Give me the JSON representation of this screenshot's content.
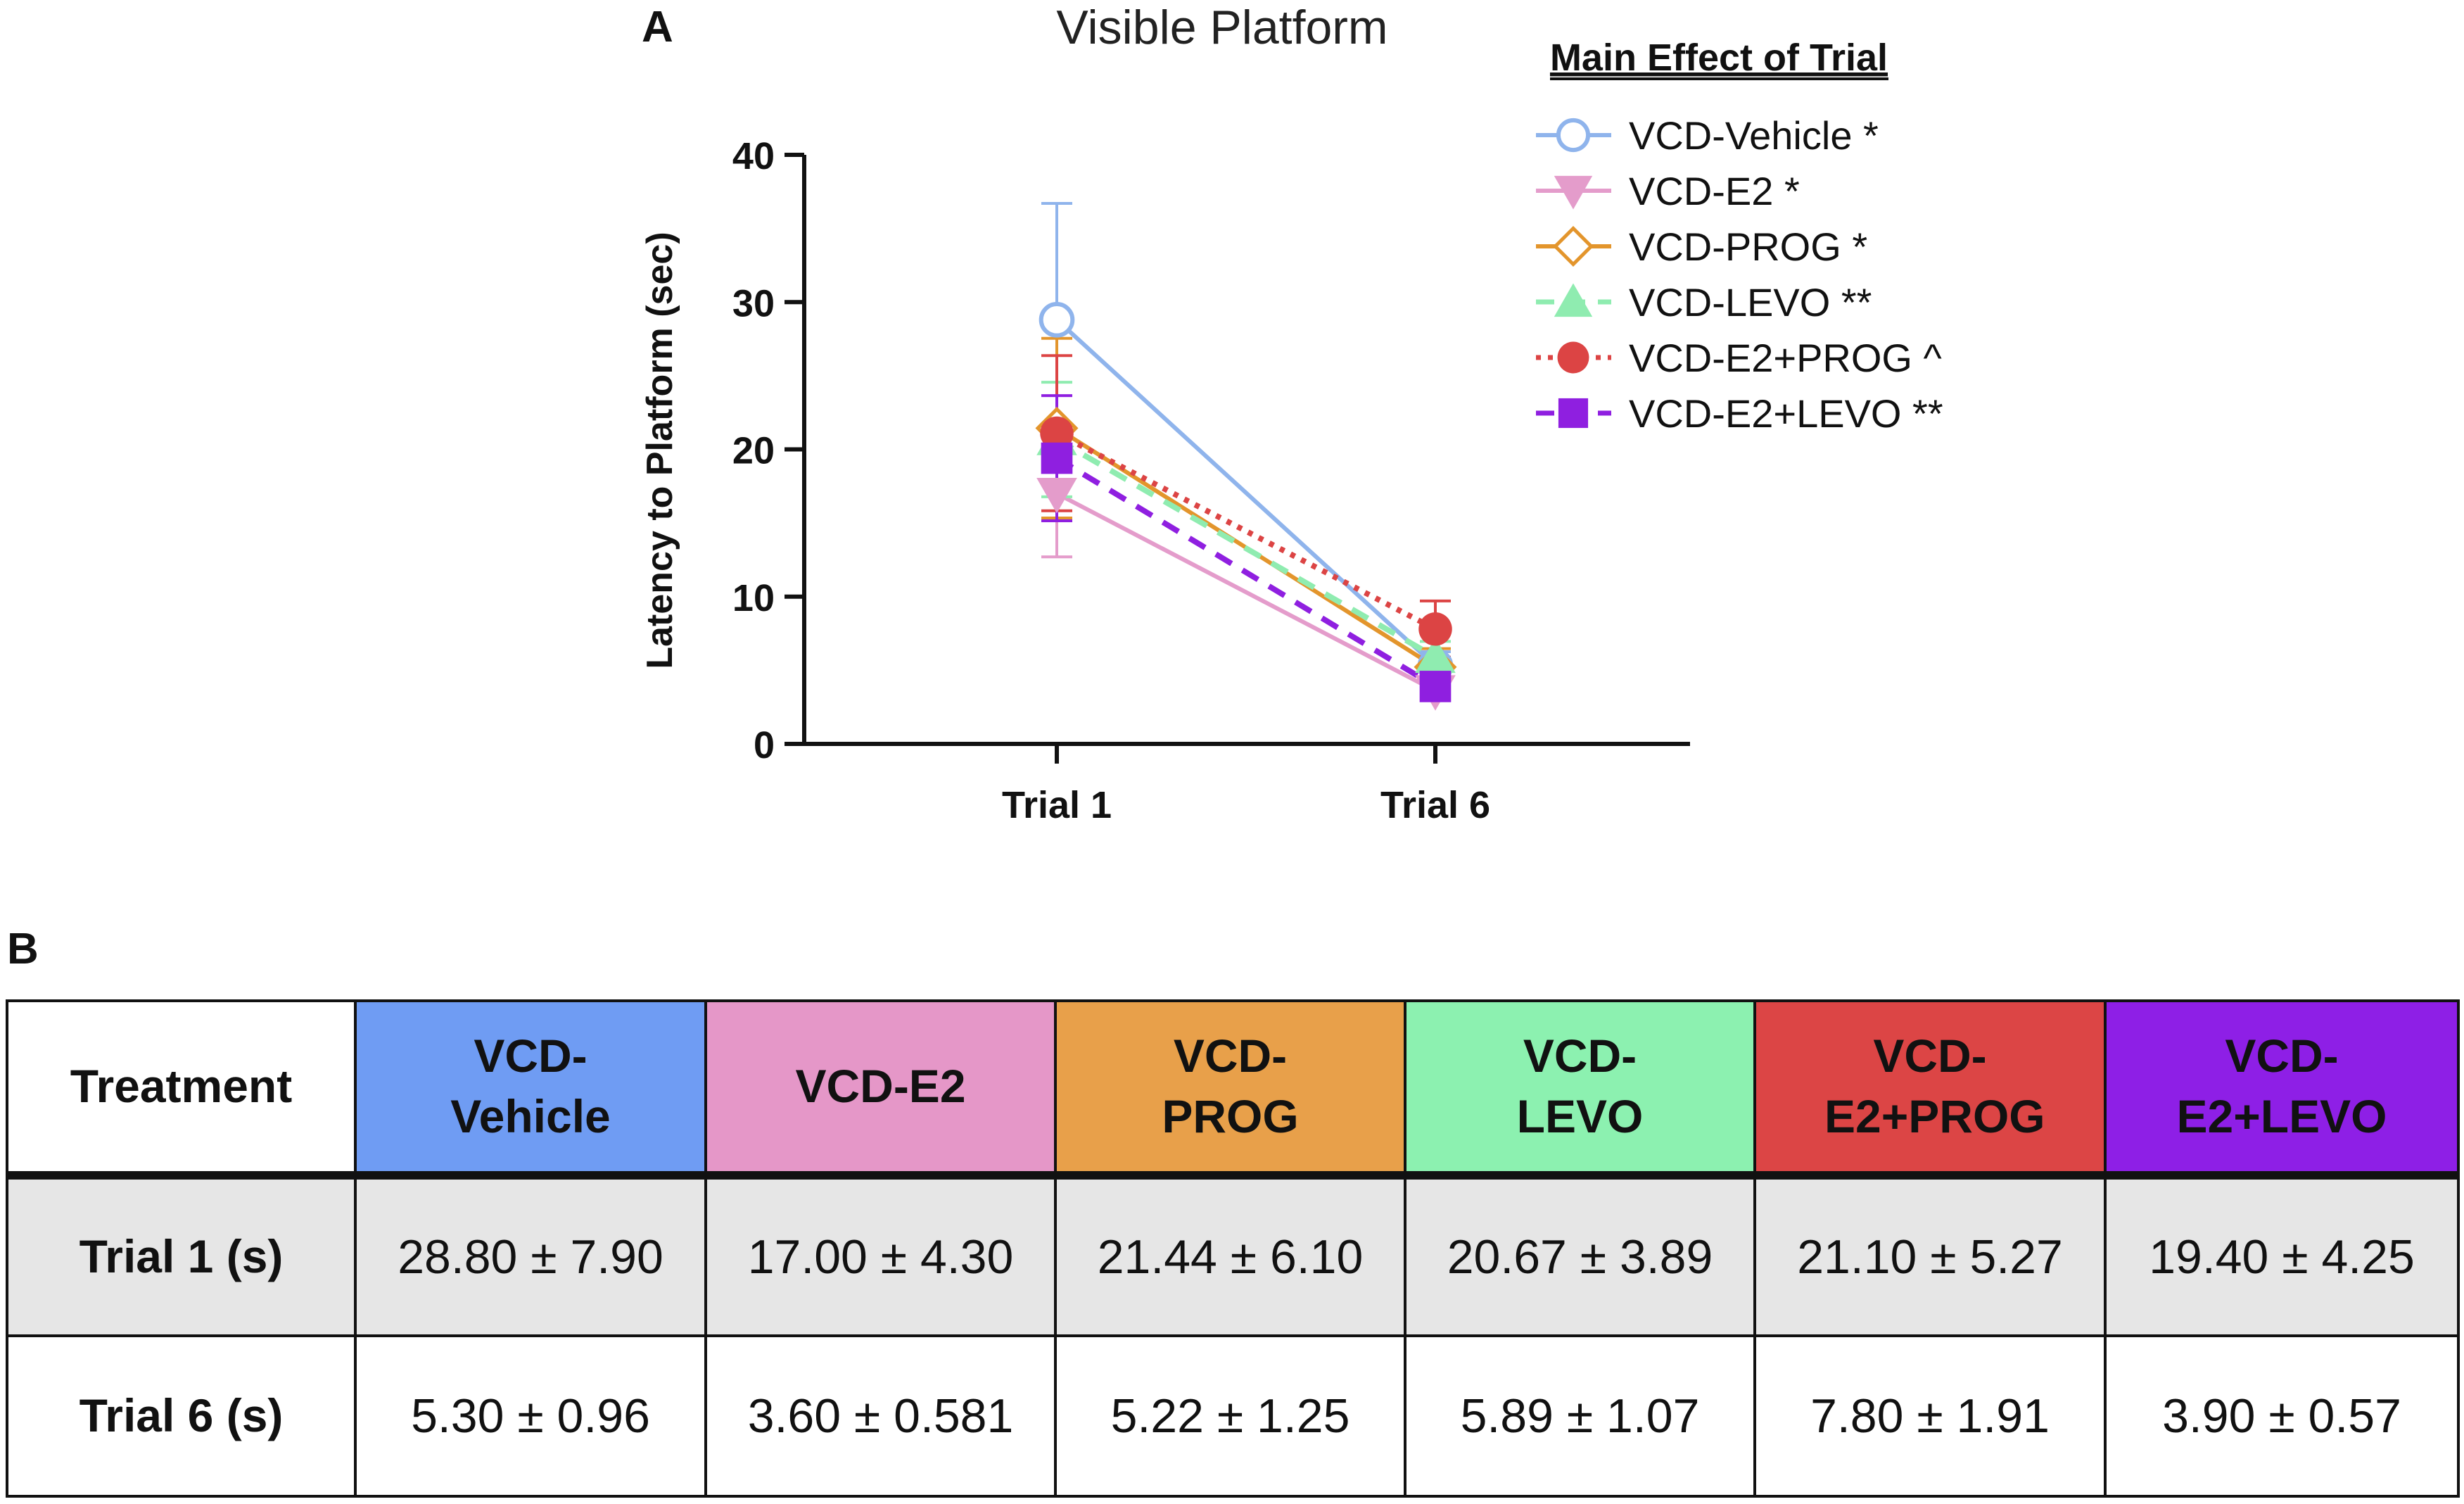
{
  "panels": {
    "a": "A",
    "b": "B"
  },
  "chart_data": {
    "type": "line",
    "title": "Visible Platform",
    "xlabel": "",
    "ylabel": "Latency to Platform (sec)",
    "categories": [
      "Trial 1",
      "Trial 6"
    ],
    "ylim": [
      0,
      40
    ],
    "yticks": [
      0,
      10,
      20,
      30,
      40
    ],
    "legend_title": "Main Effect of Trial",
    "legend_position": "top-right",
    "series": [
      {
        "name": "VCD-Vehicle",
        "mark": "*",
        "color": "#8fb4ec",
        "marker": "circle-open",
        "dash": "solid",
        "values": [
          28.8,
          5.3
        ],
        "errors": [
          7.9,
          0.96
        ]
      },
      {
        "name": "VCD-E2",
        "mark": "*",
        "color": "#e49ccb",
        "marker": "triangle-down",
        "dash": "solid",
        "values": [
          17.0,
          3.6
        ],
        "errors": [
          4.3,
          0.581
        ]
      },
      {
        "name": "VCD-PROG",
        "mark": "*",
        "color": "#e3952c",
        "marker": "diamond-open",
        "dash": "solid",
        "values": [
          21.44,
          5.22
        ],
        "errors": [
          6.1,
          1.25
        ]
      },
      {
        "name": "VCD-LEVO",
        "mark": "**",
        "color": "#8fecb0",
        "marker": "triangle-up",
        "dash": "dash",
        "values": [
          20.67,
          5.89
        ],
        "errors": [
          3.89,
          1.07
        ]
      },
      {
        "name": "VCD-E2+PROG",
        "mark": "^",
        "color": "#dc4444",
        "marker": "circle",
        "dash": "dot",
        "values": [
          21.1,
          7.8
        ],
        "errors": [
          5.27,
          1.91
        ]
      },
      {
        "name": "VCD-E2+LEVO",
        "mark": "**",
        "color": "#8f1fe0",
        "marker": "square",
        "dash": "dash",
        "values": [
          19.4,
          3.9
        ],
        "errors": [
          4.25,
          0.57
        ]
      }
    ]
  },
  "table": {
    "corner": "Treatment",
    "headers": [
      {
        "label": "VCD-Vehicle",
        "color": "#6f9cf3"
      },
      {
        "label": "VCD-E2",
        "color": "#e597c8"
      },
      {
        "label": "VCD-PROG",
        "color": "#e8a04a"
      },
      {
        "label": "VCD-LEVO",
        "color": "#8cf1b0"
      },
      {
        "label": "VCD-E2+PROG",
        "color": "#dc4545"
      },
      {
        "label": "VCD-E2+LEVO",
        "color": "#8e1fe6"
      }
    ],
    "rows": [
      {
        "label": "Trial 1 (s)",
        "cells": [
          "28.80 ± 7.90",
          "17.00 ± 4.30",
          "21.44 ± 6.10",
          "20.67 ± 3.89",
          "21.10 ± 5.27",
          "19.40 ± 4.25"
        ]
      },
      {
        "label": "Trial 6 (s)",
        "cells": [
          "5.30 ± 0.96",
          "3.60 ± 0.581",
          "5.22 ± 1.25",
          "5.89 ± 1.07",
          "7.80 ± 1.91",
          "3.90 ± 0.57"
        ]
      }
    ]
  }
}
